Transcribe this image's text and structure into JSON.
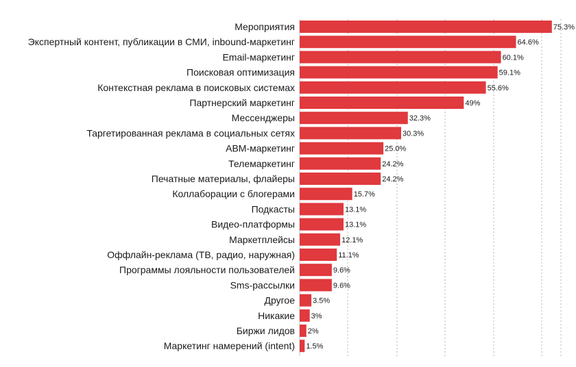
{
  "chart_data": {
    "type": "bar",
    "orientation": "horizontal",
    "categories": [
      "Мероприятия",
      "Экспертный контент, публикации в СМИ, inbound-маркетинг",
      "Email-маркетинг",
      "Поисковая оптимизация",
      "Контекстная реклама в поисковых системах",
      "Партнерский маркетинг",
      "Мессенджеры",
      "Таргетированная реклама в социальных сетях",
      "ABM-маркетинг",
      "Телемаркетинг",
      "Печатные материалы, флайеры",
      "Коллаборации с блогерами",
      "Подкасты",
      "Видео-платформы",
      "Маркетплейсы",
      "Оффлайн-реклама (ТВ, радио, наружная)",
      "Программы лояльности пользователей",
      "Sms-рассылки",
      "Другое",
      "Никакие",
      "Биржи лидов",
      "Маркетинг намерений (intent)"
    ],
    "values": [
      75.3,
      64.6,
      60.1,
      59.1,
      55.6,
      49,
      32.3,
      30.3,
      25.0,
      24.2,
      24.2,
      15.7,
      13.1,
      13.1,
      12.1,
      11.1,
      9.6,
      9.6,
      3.5,
      3,
      2,
      1.5
    ],
    "value_labels": [
      "75.3%",
      "64.6%",
      "60.1%",
      "59.1%",
      "55.6%",
      "49%",
      "32.3%",
      "30.3%",
      "25.0%",
      "24.2%",
      "24.2%",
      "15.7%",
      "13.1%",
      "13.1%",
      "12.1%",
      "11.1%",
      "9.6%",
      "9.6%",
      "3.5%",
      "3%",
      "2%",
      "1.5%"
    ],
    "xlim": [
      0,
      78
    ],
    "grid": true,
    "legend": "none",
    "bar_color": "#e0393e"
  }
}
